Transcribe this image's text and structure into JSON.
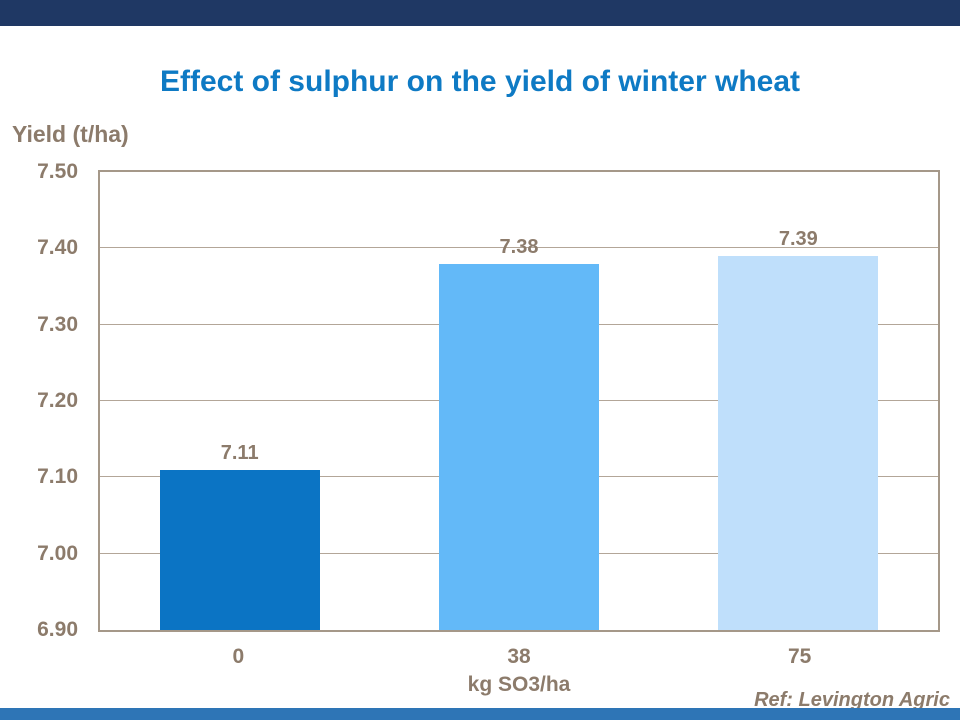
{
  "slide": {
    "background": "#FFFFFF",
    "top_bar_color": "#1F3864",
    "bottom_bar_color": "#2E75B6"
  },
  "title": {
    "text": "Effect of sulphur on the yield of winter wheat",
    "color": "#0E7AC4"
  },
  "footer": {
    "reference": "Ref: Levington Agric"
  },
  "chart_data": {
    "type": "bar",
    "title": "Effect of sulphur on the yield of winter wheat",
    "categories": [
      "0",
      "38",
      "75"
    ],
    "values": [
      7.11,
      7.38,
      7.39
    ],
    "data_labels": [
      "7.11",
      "7.38",
      "7.39"
    ],
    "bar_colors": [
      "#0B74C4",
      "#63B9F8",
      "#BFDFFB"
    ],
    "xlabel": "kg SO3/ha",
    "ylabel": "Yield (t/ha)",
    "ylim": [
      6.9,
      7.5
    ],
    "yticks": [
      "7.50",
      "7.40",
      "7.30",
      "7.20",
      "7.10",
      "7.00",
      "6.90"
    ],
    "grid": true,
    "legend": "none",
    "text_color": "#8C7B6B",
    "axis_color": "#A59889",
    "gridline_color": "#B3A698"
  }
}
